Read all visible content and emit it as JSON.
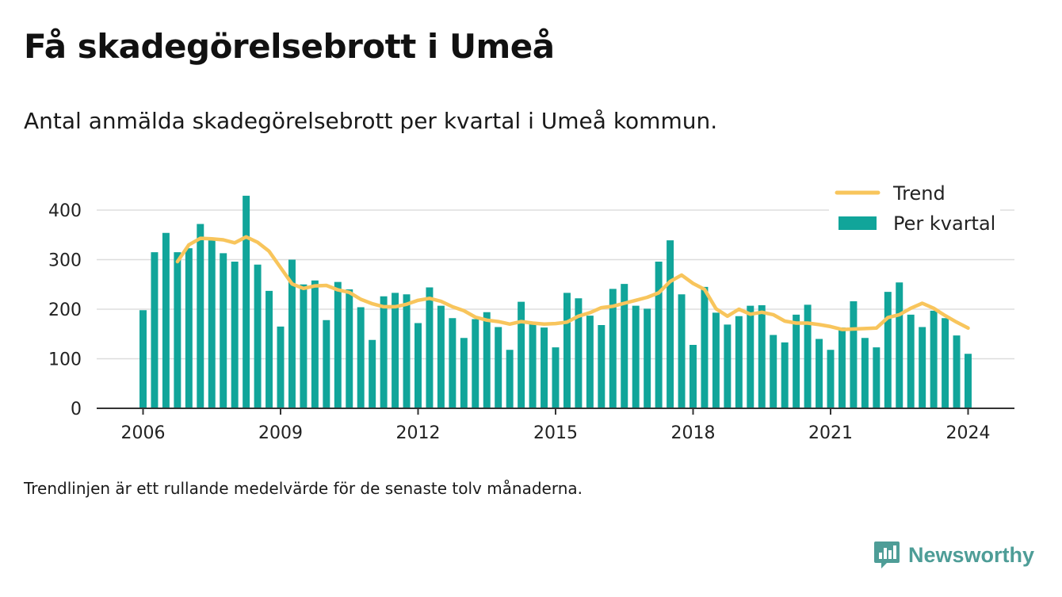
{
  "title": "Få skadegörelsebrott i Umeå",
  "subtitle": "Antal anmälda skadegörelsebrott per kvartal i Umeå kommun.",
  "footnote": "Trendlinjen är ett rullande medelvärde för de senaste tolv månaderna.",
  "brand": {
    "name": "Newsworthy",
    "icon": "newsworthy-logo-icon",
    "color": "#4e9d97"
  },
  "colors": {
    "bar": "#11a59a",
    "trend": "#f8c55c",
    "grid": "#dddddd",
    "axis": "#333333"
  },
  "chart_data": {
    "type": "bar",
    "title": "",
    "xlabel": "",
    "ylabel": "",
    "ylim": [
      0,
      440
    ],
    "xlim": [
      2005,
      2025.05
    ],
    "grid": true,
    "legend_position": "top-right",
    "yticks": [
      0,
      100,
      200,
      300,
      400
    ],
    "xticks": [
      2006,
      2009,
      2012,
      2015,
      2018,
      2021,
      2024
    ],
    "quarter_start": 2006.0,
    "series": [
      {
        "name": "Per kvartal",
        "type": "bar",
        "values": [
          198,
          315,
          354,
          315,
          323,
          372,
          339,
          313,
          296,
          429,
          290,
          237,
          165,
          300,
          250,
          258,
          178,
          255,
          240,
          204,
          138,
          226,
          233,
          230,
          172,
          244,
          207,
          182,
          142,
          180,
          194,
          164,
          118,
          215,
          172,
          163,
          123,
          233,
          222,
          187,
          168,
          241,
          251,
          207,
          201,
          296,
          339,
          230,
          128,
          245,
          193,
          169,
          186,
          207,
          208,
          148,
          133,
          189,
          209,
          140,
          118,
          163,
          216,
          142,
          123,
          235,
          254,
          189,
          164,
          197,
          182,
          147,
          110
        ]
      },
      {
        "name": "Trend",
        "type": "line",
        "x_start": 2006.75,
        "values": [
          296,
          330,
          343,
          342,
          340,
          334,
          346,
          335,
          317,
          284,
          251,
          242,
          247,
          248,
          239,
          234,
          220,
          211,
          205,
          205,
          210,
          218,
          222,
          216,
          205,
          197,
          184,
          178,
          175,
          170,
          175,
          172,
          170,
          171,
          174,
          186,
          193,
          203,
          206,
          212,
          218,
          224,
          233,
          256,
          269,
          252,
          240,
          201,
          186,
          200,
          190,
          194,
          189,
          176,
          172,
          172,
          169,
          165,
          159,
          160,
          161,
          162,
          183,
          189,
          202,
          212,
          202,
          187,
          174,
          162
        ]
      }
    ]
  }
}
